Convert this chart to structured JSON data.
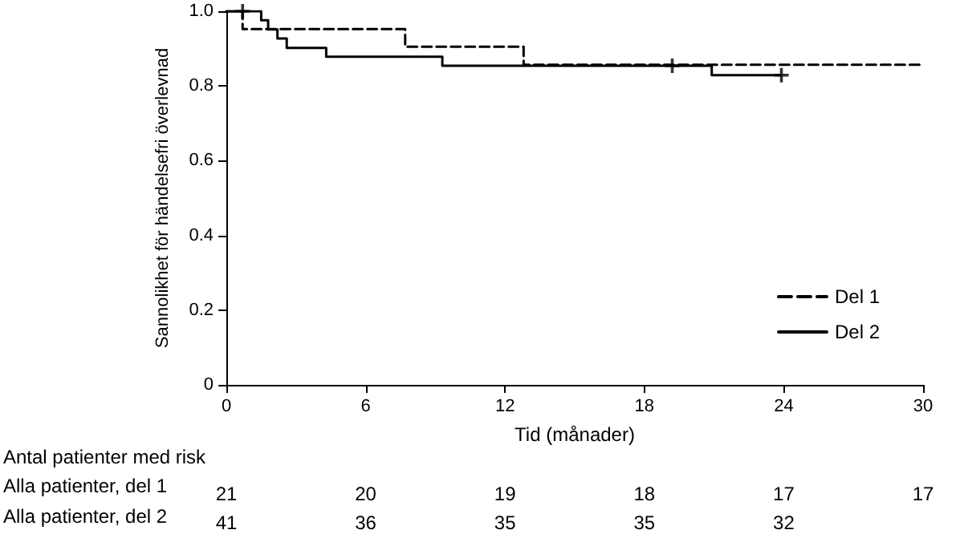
{
  "chart_data": {
    "type": "step",
    "xlabel": "Tid (månader)",
    "ylabel": "Sannolikhet för händelsefri överlevnad",
    "xlim": [
      0,
      30
    ],
    "xticks": [
      0,
      6,
      12,
      18,
      24,
      30
    ],
    "ylim": [
      0,
      1
    ],
    "yticks": [
      0,
      0.2,
      0.4,
      0.6,
      0.8,
      {
        "value": 1,
        "label": "1.0"
      }
    ],
    "grid": false,
    "legend": "bottom right",
    "marker": "none",
    "series": [
      {
        "name": "Del 1",
        "color": "#000000",
        "line_style": "dashed",
        "x": [
          0,
          0.7,
          7.7,
          12.8,
          30
        ],
        "values": [
          1,
          0.952,
          0.905,
          0.857,
          0.857
        ]
      },
      {
        "name": "Del 2",
        "color": "#000000",
        "line_style": "solid",
        "x": [
          0,
          1.5,
          1.8,
          2.2,
          2.6,
          4.3,
          9.3,
          20.9,
          23.9
        ],
        "values": [
          1,
          0.976,
          0.951,
          0.927,
          0.902,
          0.878,
          0.854,
          0.829,
          0.829
        ]
      },
      {
        "type": "scatter",
        "color": "#000000",
        "marker": "cross",
        "x": [
          0.7,
          19.2,
          23.9
        ],
        "values": [
          1,
          0.854,
          0.829
        ]
      }
    ],
    "annotations": [
      "Antal patienter med risk",
      "Alla patienter, del 1",
      "Alla patienter, del 2",
      "21",
      "20",
      "19",
      "18",
      "17",
      "17",
      "41",
      "36",
      "35",
      "35",
      "32"
    ]
  }
}
